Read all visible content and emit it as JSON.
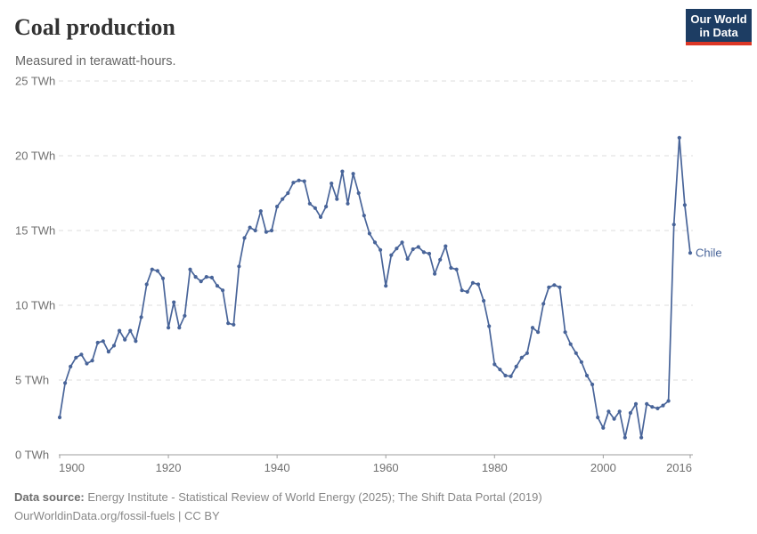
{
  "header": {
    "title": "Coal production",
    "subtitle": "Measured in terawatt-hours.",
    "logo": {
      "line1": "Our World",
      "line2": "in Data",
      "bg_color": "#1d3d63",
      "bar_color": "#dc3726",
      "text_color": "#ffffff"
    }
  },
  "chart_data": {
    "type": "line",
    "title": "Coal production",
    "unit": "TWh",
    "entity": "Chile",
    "end_label": "Chile",
    "xlim": [
      1900,
      2016
    ],
    "ylim": [
      0,
      25
    ],
    "x_ticks": [
      1900,
      1920,
      1940,
      1960,
      1980,
      2000,
      2016
    ],
    "y_ticks": [
      0,
      5,
      10,
      15,
      20,
      25
    ],
    "y_tick_suffix": " TWh",
    "grid": "horizontal-dashed",
    "legend_position": "end-of-line",
    "series": [
      {
        "name": "Chile",
        "color": "#486499",
        "x_annual_start": 1900,
        "x_annual_end": 2016,
        "values": [
          2.5,
          4.8,
          5.9,
          6.5,
          6.7,
          6.1,
          6.3,
          7.5,
          7.6,
          6.9,
          7.3,
          8.3,
          7.7,
          8.3,
          7.6,
          9.2,
          11.4,
          12.4,
          12.3,
          11.8,
          8.5,
          10.2,
          8.5,
          9.3,
          12.4,
          11.9,
          11.6,
          11.9,
          11.85,
          11.3,
          11.0,
          8.8,
          8.7,
          12.6,
          14.5,
          15.2,
          15.0,
          16.3,
          14.9,
          15.0,
          16.6,
          17.1,
          17.5,
          18.2,
          18.35,
          18.3,
          16.8,
          16.5,
          15.9,
          16.6,
          18.15,
          17.1,
          18.95,
          16.8,
          18.8,
          17.5,
          16.0,
          14.8,
          14.2,
          13.7,
          11.3,
          13.35,
          13.8,
          14.2,
          13.1,
          13.75,
          13.9,
          13.55,
          13.45,
          12.1,
          13.05,
          13.95,
          12.5,
          12.4,
          11.0,
          10.9,
          11.5,
          11.4,
          10.3,
          8.6,
          6.05,
          5.7,
          5.3,
          5.25,
          5.9,
          6.5,
          6.8,
          8.5,
          8.2,
          10.1,
          11.2,
          11.35,
          11.2,
          8.2,
          7.4,
          6.8,
          6.2,
          5.3,
          4.7,
          2.5,
          1.8,
          2.9,
          2.4,
          2.9,
          1.15,
          2.8,
          3.4,
          1.15,
          3.4,
          3.2,
          3.1,
          3.3,
          3.6,
          15.4,
          21.2,
          16.7,
          13.5
        ]
      }
    ],
    "style": {
      "grid_color": "#dcdcdc",
      "axis_color": "#9e9e9e",
      "tick_label_color": "#6f6f6f"
    }
  },
  "footer": {
    "source_label": "Data source:",
    "source_text": " Energy Institute - Statistical Review of World Energy (2025); The Shift Data Portal (2019)",
    "link_text": "OurWorldinData.org/fossil-fuels | CC BY"
  }
}
